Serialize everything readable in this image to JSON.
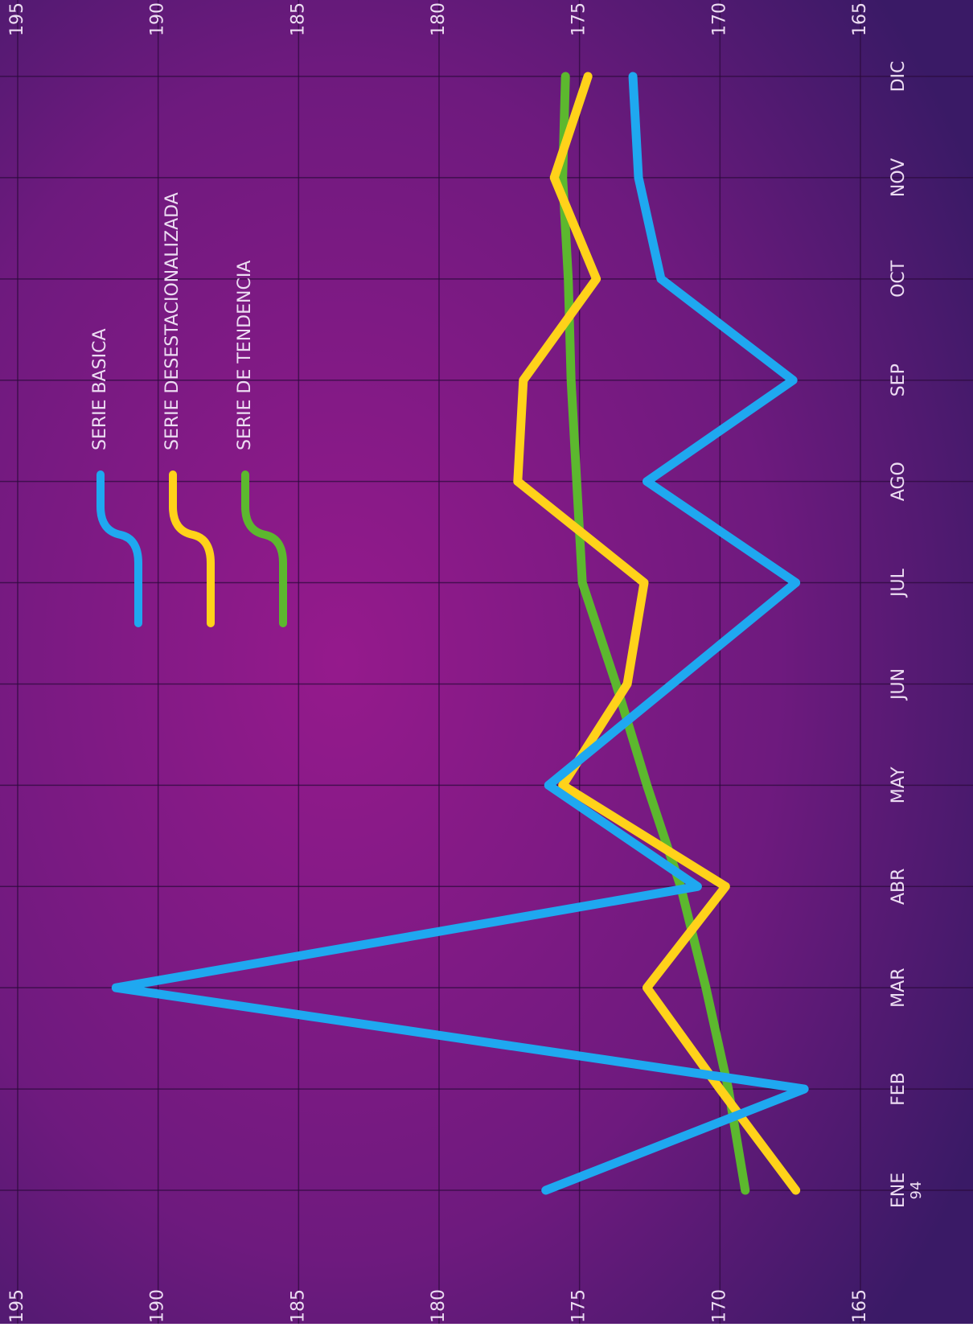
{
  "chart_data": {
    "type": "line",
    "categories": [
      "ENE",
      "FEB",
      "MAR",
      "ABR",
      "MAY",
      "JUN",
      "JUL",
      "AGO",
      "SEP",
      "OCT",
      "NOV",
      "DIC"
    ],
    "year_label": "94",
    "series": [
      {
        "name": "SERIE BASICA",
        "color": "#1fa8f0",
        "values": [
          176.2,
          167.0,
          191.5,
          170.8,
          176.1,
          171.7,
          167.3,
          172.6,
          167.4,
          172.1,
          172.9,
          173.1
        ]
      },
      {
        "name": "SERIE DESESTACIONALIZADA",
        "color": "#ffd21a",
        "values": [
          167.3,
          170.0,
          172.6,
          169.8,
          175.6,
          173.3,
          172.7,
          177.2,
          177.0,
          174.4,
          175.9,
          174.7
        ]
      },
      {
        "name": "SERIE DE TENDENCIA",
        "color": "#5cb82e",
        "values": [
          169.1,
          169.7,
          170.5,
          171.4,
          172.6,
          173.7,
          174.9,
          175.1,
          175.3,
          175.4,
          175.6,
          175.5
        ]
      }
    ],
    "ylim": [
      165,
      195
    ],
    "yticks": [
      165,
      170,
      175,
      180,
      185,
      190,
      195
    ],
    "grid": true
  }
}
